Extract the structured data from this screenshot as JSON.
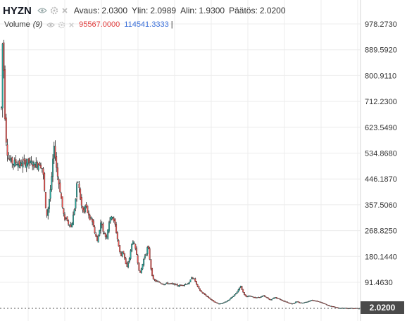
{
  "header": {
    "symbol": "HYZN",
    "open_label": "Avaus:",
    "open_value": "2.0300",
    "high_label": "Ylin:",
    "high_value": "2.0989",
    "low_label": "Alin:",
    "low_value": "1.9300",
    "close_label": "Päätös:",
    "close_value": "2.0200",
    "icons": [
      "eye-icon",
      "gear-icon",
      "close-icon"
    ]
  },
  "volume": {
    "label": "Volume",
    "param": "(9)",
    "value1": "95567.0000",
    "value2": "114541.3333",
    "value1_color": "#e03c3c",
    "value2_color": "#3a6fd9"
  },
  "last_price": "2.0200",
  "colors": {
    "up": "#26a69a",
    "down": "#ef5350",
    "wick": "#222222",
    "grid": "#ececec"
  },
  "chart_data": {
    "type": "candlestick",
    "y_ticks": [
      "978.2730",
      "889.5920",
      "800.9110",
      "712.2300",
      "623.5490",
      "534.8680",
      "446.1870",
      "357.5060",
      "268.8250",
      "180.1440",
      "91.4630"
    ],
    "ylim": [
      2.02,
      978.273
    ],
    "grid": true,
    "series": [
      {
        "name": "",
        "close_path": [
          [
            0,
            690
          ],
          [
            1,
            960
          ],
          [
            2,
            880
          ],
          [
            3,
            840
          ],
          [
            4,
            760
          ],
          [
            5,
            650
          ],
          [
            6,
            600
          ],
          [
            7,
            560
          ],
          [
            9,
            520
          ],
          [
            12,
            510
          ],
          [
            16,
            500
          ],
          [
            20,
            505
          ],
          [
            25,
            495
          ],
          [
            30,
            500
          ],
          [
            35,
            505
          ],
          [
            40,
            500
          ],
          [
            45,
            495
          ],
          [
            52,
            500
          ],
          [
            56,
            480
          ],
          [
            58,
            420
          ],
          [
            60,
            340
          ],
          [
            62,
            320
          ],
          [
            64,
            360
          ],
          [
            66,
            400
          ],
          [
            68,
            440
          ],
          [
            70,
            520
          ],
          [
            72,
            560
          ],
          [
            74,
            500
          ],
          [
            76,
            460
          ],
          [
            78,
            430
          ],
          [
            80,
            400
          ],
          [
            82,
            360
          ],
          [
            84,
            330
          ],
          [
            86,
            300
          ],
          [
            88,
            320
          ],
          [
            90,
            290
          ],
          [
            92,
            300
          ],
          [
            94,
            280
          ],
          [
            96,
            300
          ],
          [
            98,
            330
          ],
          [
            100,
            360
          ],
          [
            102,
            420
          ],
          [
            104,
            440
          ],
          [
            106,
            400
          ],
          [
            108,
            360
          ],
          [
            110,
            340
          ],
          [
            112,
            330
          ],
          [
            114,
            360
          ],
          [
            116,
            340
          ],
          [
            118,
            320
          ],
          [
            120,
            300
          ],
          [
            122,
            320
          ],
          [
            124,
            290
          ],
          [
            126,
            270
          ],
          [
            128,
            250
          ],
          [
            130,
            230
          ],
          [
            132,
            260
          ],
          [
            134,
            290
          ],
          [
            136,
            300
          ],
          [
            138,
            260
          ],
          [
            140,
            260
          ],
          [
            142,
            240
          ],
          [
            144,
            270
          ],
          [
            146,
            300
          ],
          [
            148,
            310
          ],
          [
            150,
            330
          ],
          [
            152,
            300
          ],
          [
            154,
            290
          ],
          [
            156,
            260
          ],
          [
            158,
            230
          ],
          [
            160,
            200
          ],
          [
            162,
            180
          ],
          [
            164,
            200
          ],
          [
            166,
            190
          ],
          [
            168,
            160
          ],
          [
            170,
            140
          ],
          [
            172,
            160
          ],
          [
            174,
            180
          ],
          [
            176,
            210
          ],
          [
            178,
            240
          ],
          [
            180,
            220
          ],
          [
            182,
            200
          ],
          [
            184,
            180
          ],
          [
            186,
            140
          ],
          [
            188,
            120
          ],
          [
            190,
            140
          ],
          [
            192,
            160
          ],
          [
            194,
            180
          ],
          [
            196,
            190
          ],
          [
            198,
            210
          ],
          [
            200,
            200
          ],
          [
            202,
            150
          ],
          [
            204,
            120
          ],
          [
            206,
            100
          ],
          [
            210,
            95
          ],
          [
            215,
            90
          ],
          [
            220,
            85
          ],
          [
            225,
            88
          ],
          [
            230,
            86
          ],
          [
            235,
            84
          ],
          [
            240,
            80
          ],
          [
            245,
            82
          ],
          [
            250,
            85
          ],
          [
            255,
            90
          ],
          [
            258,
            110
          ],
          [
            262,
            100
          ],
          [
            265,
            80
          ],
          [
            270,
            60
          ],
          [
            275,
            50
          ],
          [
            280,
            40
          ],
          [
            285,
            30
          ],
          [
            290,
            22
          ],
          [
            295,
            18
          ],
          [
            300,
            20
          ],
          [
            305,
            25
          ],
          [
            310,
            35
          ],
          [
            315,
            45
          ],
          [
            320,
            60
          ],
          [
            324,
            80
          ],
          [
            328,
            55
          ],
          [
            332,
            40
          ],
          [
            336,
            45
          ],
          [
            340,
            42
          ],
          [
            345,
            38
          ],
          [
            350,
            40
          ],
          [
            355,
            45
          ],
          [
            360,
            38
          ],
          [
            365,
            30
          ],
          [
            370,
            40
          ],
          [
            375,
            35
          ],
          [
            380,
            30
          ],
          [
            385,
            25
          ],
          [
            390,
            20
          ],
          [
            395,
            18
          ],
          [
            400,
            25
          ],
          [
            405,
            20
          ],
          [
            410,
            22
          ],
          [
            415,
            25
          ],
          [
            420,
            30
          ],
          [
            425,
            28
          ],
          [
            430,
            25
          ],
          [
            435,
            20
          ],
          [
            440,
            15
          ],
          [
            445,
            10
          ],
          [
            450,
            8
          ],
          [
            455,
            4
          ],
          [
            460,
            3
          ],
          [
            465,
            2.5
          ],
          [
            470,
            2.2
          ],
          [
            475,
            2.1
          ],
          [
            480,
            2.05
          ],
          [
            485,
            2.02
          ]
        ]
      }
    ],
    "volume": {
      "values": [
        95567.0,
        114541.3333
      ]
    }
  }
}
